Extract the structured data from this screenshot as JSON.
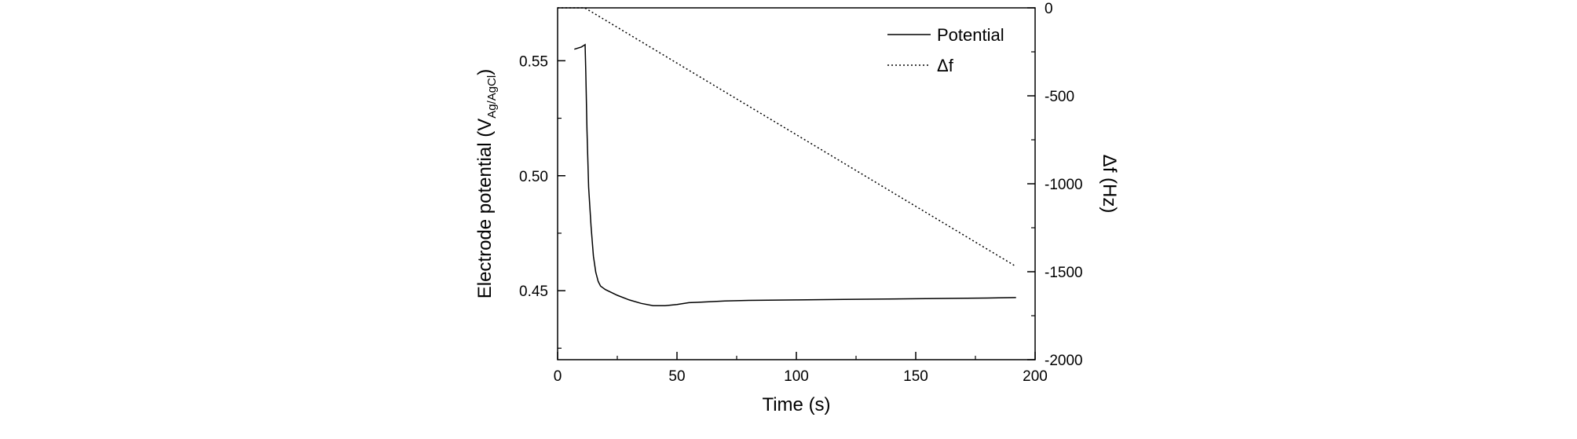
{
  "chart_data": {
    "type": "line",
    "xlabel": "Time (s)",
    "ylabel_left": {
      "main": "Electrode potential (V",
      "sub": "Ag/AgCl",
      "close": ")"
    },
    "ylabel_right": "Δf (Hz)",
    "xlim": [
      0,
      200
    ],
    "ylim_left": [
      0.42,
      0.573
    ],
    "ylim_right": [
      -2000,
      0
    ],
    "x_ticks": [
      0,
      50,
      100,
      150,
      200
    ],
    "y_left_ticks": [
      0.45,
      0.5,
      0.55
    ],
    "y_left_tick_labels": [
      "0.45",
      "0.50",
      "0.55"
    ],
    "y_right_ticks": [
      0,
      -500,
      -1000,
      -1500,
      -2000
    ],
    "legend_position": "top-right",
    "series": [
      {
        "name": "Potential",
        "axis": "left",
        "style": "solid",
        "x": [
          7,
          10,
          11.5,
          11.8,
          12.3,
          13,
          14,
          15,
          16,
          17,
          18,
          20,
          25,
          30,
          35,
          40,
          45,
          50,
          55,
          60,
          70,
          80,
          100,
          120,
          150,
          180,
          192
        ],
        "y": [
          0.555,
          0.556,
          0.557,
          0.545,
          0.52,
          0.495,
          0.478,
          0.465,
          0.458,
          0.454,
          0.452,
          0.4505,
          0.448,
          0.446,
          0.4445,
          0.4435,
          0.4435,
          0.444,
          0.4448,
          0.445,
          0.4455,
          0.4458,
          0.446,
          0.4462,
          0.4465,
          0.4468,
          0.447
        ]
      },
      {
        "name": "Δf",
        "axis": "right",
        "style": "dotted",
        "x": [
          0,
          11,
          12,
          192
        ],
        "y": [
          0,
          0,
          -5,
          -1470
        ]
      }
    ]
  }
}
